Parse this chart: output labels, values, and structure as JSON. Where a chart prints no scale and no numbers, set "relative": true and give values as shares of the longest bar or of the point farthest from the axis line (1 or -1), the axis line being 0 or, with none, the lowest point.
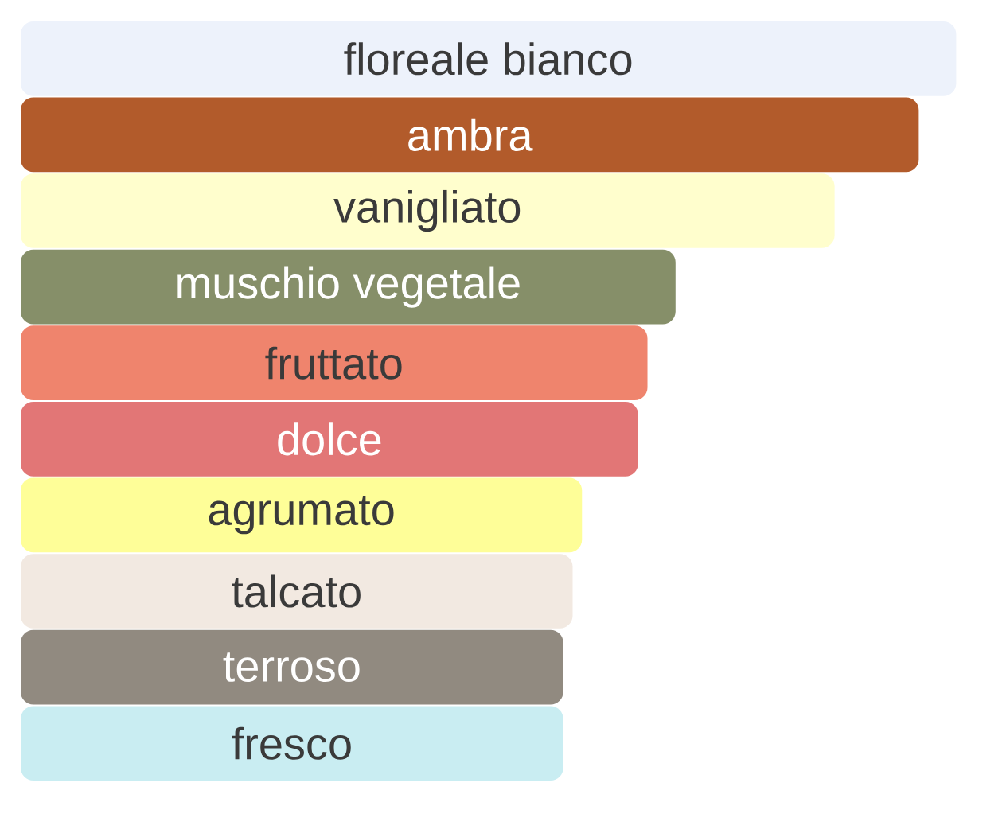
{
  "chart_data": {
    "type": "bar",
    "orientation": "horizontal",
    "relative": true,
    "categories": [
      "floreale bianco",
      "ambra",
      "vanigliato",
      "muschio vegetale",
      "fruttato",
      "dolce",
      "agrumato",
      "talcato",
      "terroso",
      "fresco"
    ],
    "values": [
      1,
      0.96,
      0.87,
      0.7,
      0.67,
      0.66,
      0.6,
      0.59,
      0.58,
      0.58
    ],
    "colors": [
      "#edf2fb",
      "#b25b2b",
      "#fffecd",
      "#868f69",
      "#ef846d",
      "#e27676",
      "#fefe98",
      "#f2e9e1",
      "#918a80",
      "#c9edf2"
    ]
  }
}
